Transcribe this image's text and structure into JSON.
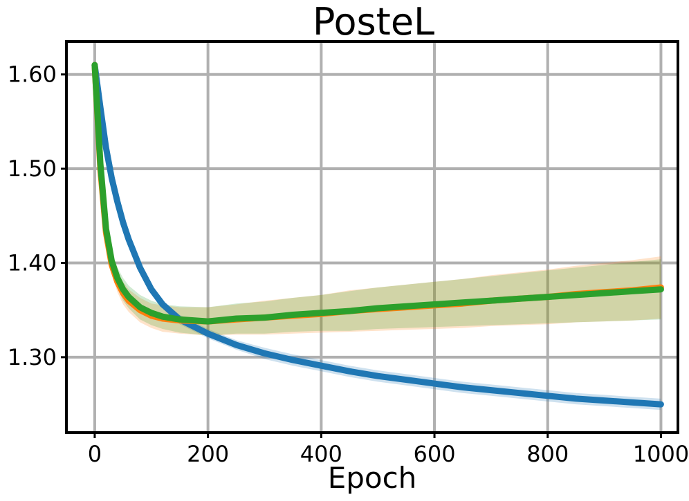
{
  "chart_data": {
    "type": "line",
    "title": "PosteL",
    "xlabel": "Epoch",
    "ylabel": "",
    "xlim": [
      -50,
      1030
    ],
    "ylim": [
      1.22,
      1.635
    ],
    "xticks": [
      0,
      200,
      400,
      600,
      800,
      1000
    ],
    "xtick_labels": [
      "0",
      "200",
      "400",
      "600",
      "800",
      "1000"
    ],
    "yticks": [
      1.3,
      1.4,
      1.5,
      1.6
    ],
    "ytick_labels": [
      "1.30",
      "1.40",
      "1.50",
      "1.60"
    ],
    "grid": true,
    "legend": "none",
    "series": [
      {
        "color": "#1f77b4",
        "x": [
          0,
          10,
          20,
          30,
          40,
          50,
          60,
          80,
          100,
          120,
          150,
          200,
          250,
          300,
          350,
          400,
          450,
          500,
          550,
          600,
          650,
          700,
          750,
          800,
          850,
          900,
          950,
          1000
        ],
        "y": [
          1.61,
          1.565,
          1.522,
          1.49,
          1.465,
          1.443,
          1.425,
          1.395,
          1.372,
          1.356,
          1.34,
          1.325,
          1.313,
          1.304,
          1.297,
          1.291,
          1.285,
          1.28,
          1.276,
          1.272,
          1.268,
          1.265,
          1.262,
          1.259,
          1.256,
          1.254,
          1.252,
          1.25
        ],
        "band": [
          0.004,
          0.004,
          0.004,
          0.004,
          0.004,
          0.004,
          0.004,
          0.004,
          0.004,
          0.004,
          0.005,
          0.005,
          0.005,
          0.006,
          0.006,
          0.006,
          0.006,
          0.006,
          0.006,
          0.006,
          0.006,
          0.006,
          0.006,
          0.006,
          0.006,
          0.006,
          0.006,
          0.006
        ]
      },
      {
        "color": "#ff7f0e",
        "x": [
          0,
          10,
          20,
          30,
          40,
          50,
          60,
          80,
          100,
          120,
          150,
          200,
          250,
          300,
          350,
          400,
          450,
          500,
          550,
          600,
          650,
          700,
          750,
          800,
          850,
          900,
          950,
          1000
        ],
        "y": [
          1.61,
          1.5,
          1.432,
          1.398,
          1.38,
          1.368,
          1.36,
          1.35,
          1.344,
          1.341,
          1.339,
          1.338,
          1.34,
          1.342,
          1.344,
          1.346,
          1.349,
          1.351,
          1.353,
          1.355,
          1.357,
          1.36,
          1.362,
          1.364,
          1.367,
          1.369,
          1.371,
          1.374
        ],
        "band": [
          0.004,
          0.006,
          0.008,
          0.01,
          0.011,
          0.012,
          0.012,
          0.013,
          0.013,
          0.014,
          0.014,
          0.015,
          0.016,
          0.018,
          0.019,
          0.02,
          0.022,
          0.023,
          0.024,
          0.025,
          0.026,
          0.027,
          0.028,
          0.029,
          0.03,
          0.031,
          0.032,
          0.033
        ]
      },
      {
        "color": "#2ca02c",
        "x": [
          0,
          10,
          20,
          30,
          40,
          50,
          60,
          80,
          100,
          120,
          150,
          200,
          250,
          300,
          350,
          400,
          450,
          500,
          550,
          600,
          650,
          700,
          750,
          800,
          850,
          900,
          950,
          1000
        ],
        "y": [
          1.61,
          1.505,
          1.436,
          1.402,
          1.384,
          1.372,
          1.364,
          1.353,
          1.347,
          1.343,
          1.34,
          1.338,
          1.341,
          1.342,
          1.345,
          1.347,
          1.349,
          1.352,
          1.354,
          1.356,
          1.358,
          1.36,
          1.362,
          1.364,
          1.366,
          1.368,
          1.37,
          1.372
        ],
        "band": [
          0.004,
          0.006,
          0.008,
          0.01,
          0.011,
          0.012,
          0.012,
          0.013,
          0.013,
          0.013,
          0.014,
          0.015,
          0.016,
          0.017,
          0.018,
          0.019,
          0.021,
          0.022,
          0.023,
          0.024,
          0.025,
          0.026,
          0.027,
          0.028,
          0.029,
          0.03,
          0.031,
          0.032
        ]
      }
    ]
  }
}
